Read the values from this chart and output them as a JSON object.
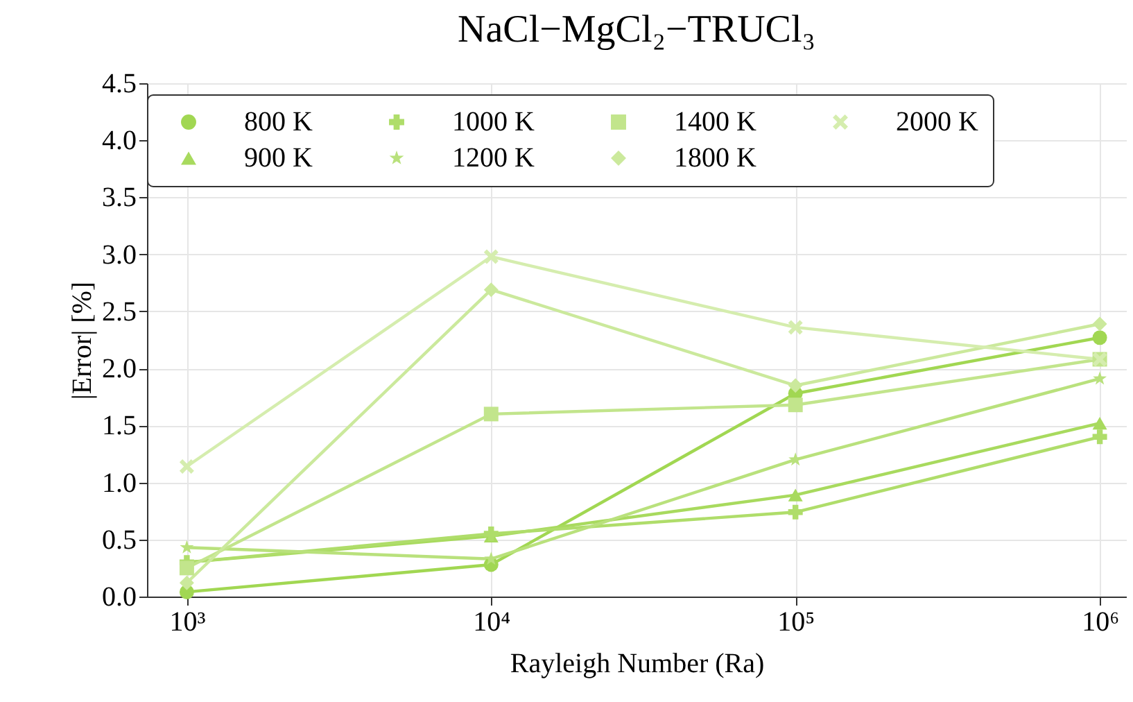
{
  "chart_data": {
    "type": "line",
    "title": "NaCl−MgCl₂−TRUCl₃",
    "xlabel": "Rayleigh Number (Ra)",
    "ylabel": "|Error| [%]",
    "x": [
      1000,
      10000,
      100000,
      1000000
    ],
    "log": "x",
    "grid": true,
    "legend": "top",
    "xlim": [
      740,
      1220000
    ],
    "xticks": [
      {
        "value": 1000,
        "label": "10³"
      },
      {
        "value": 10000,
        "label": "10⁴"
      },
      {
        "value": 100000,
        "label": "10⁵"
      },
      {
        "value": 1000000,
        "label": "10⁶"
      }
    ],
    "ylim": [
      0,
      4.5
    ],
    "yticks": [
      {
        "value": 0,
        "label": "0.0"
      },
      {
        "value": 0.5,
        "label": "0.5"
      },
      {
        "value": 1,
        "label": "1.0"
      },
      {
        "value": 1.5,
        "label": "1.5"
      },
      {
        "value": 2,
        "label": "2.0"
      },
      {
        "value": 2.5,
        "label": "2.5"
      },
      {
        "value": 3,
        "label": "3.0"
      },
      {
        "value": 3.5,
        "label": "3.5"
      },
      {
        "value": 4,
        "label": "4.0"
      },
      {
        "value": 4.5,
        "label": "4.5"
      }
    ],
    "series": [
      {
        "name": "800 K",
        "color": "#a1d752",
        "marker": "circle",
        "values": [
          0.04,
          0.28,
          1.78,
          2.27
        ]
      },
      {
        "name": "900 K",
        "color": "#a8da5e",
        "marker": "triangle",
        "values": [
          0.3,
          0.53,
          0.89,
          1.52
        ]
      },
      {
        "name": "1000 K",
        "color": "#afdd6a",
        "marker": "cross",
        "values": [
          0.3,
          0.55,
          0.74,
          1.4
        ]
      },
      {
        "name": "1200 K",
        "color": "#b9e17c",
        "marker": "star",
        "values": [
          0.43,
          0.33,
          1.2,
          1.91
        ]
      },
      {
        "name": "1400 K",
        "color": "#c2e58c",
        "marker": "square",
        "values": [
          0.25,
          1.6,
          1.68,
          2.08
        ]
      },
      {
        "name": "1800 K",
        "color": "#cbe99c",
        "marker": "diamond",
        "values": [
          0.12,
          2.69,
          1.85,
          2.39
        ]
      },
      {
        "name": "2000 K",
        "color": "#d5edae",
        "marker": "x",
        "values": [
          1.14,
          2.98,
          2.36,
          2.08
        ]
      }
    ]
  }
}
